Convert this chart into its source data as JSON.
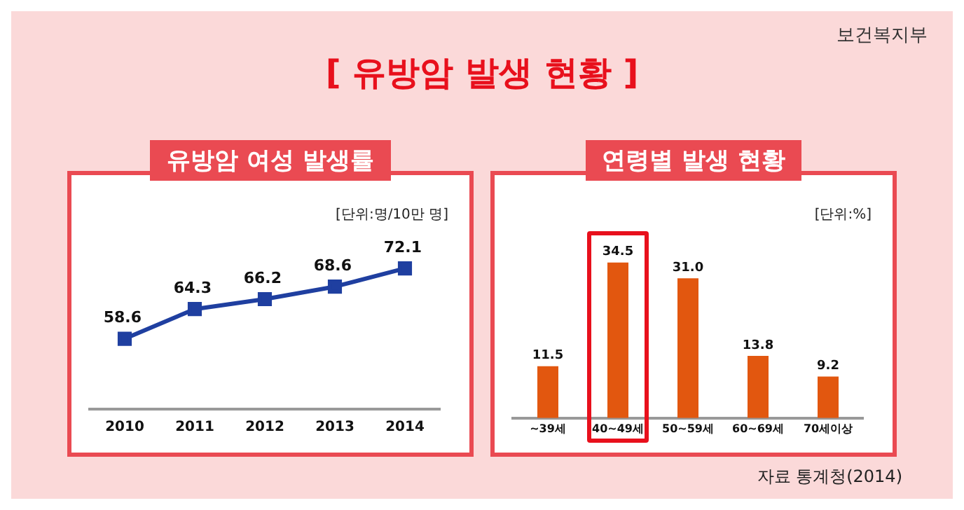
{
  "chart_data": [
    {
      "type": "line",
      "title": "유방암 여성 발생률",
      "ylabel": "[단위:명/10만 명]",
      "categories": [
        "2010",
        "2011",
        "2012",
        "2013",
        "2014"
      ],
      "values": [
        58.6,
        64.3,
        66.2,
        68.6,
        72.1
      ],
      "color": "#1f3fa0",
      "marker": "square",
      "data_labels": true,
      "annotations": [
        "[ 유방암 발생 현황 ]",
        "보건복지부"
      ]
    },
    {
      "type": "bar",
      "title": "연령별 발생 현황",
      "ylabel": "[단위:%]",
      "categories": [
        "~39세",
        "40~49세",
        "50~59세",
        "60~69세",
        "70세이상"
      ],
      "values": [
        11.5,
        34.5,
        31.0,
        13.8,
        9.2
      ],
      "value_labels": [
        "11.5",
        "34.5",
        "31.0",
        "13.8",
        "9.2"
      ],
      "color": "#e2570f",
      "annotations": [
        "자료 통계청(2014)"
      ]
    }
  ]
}
